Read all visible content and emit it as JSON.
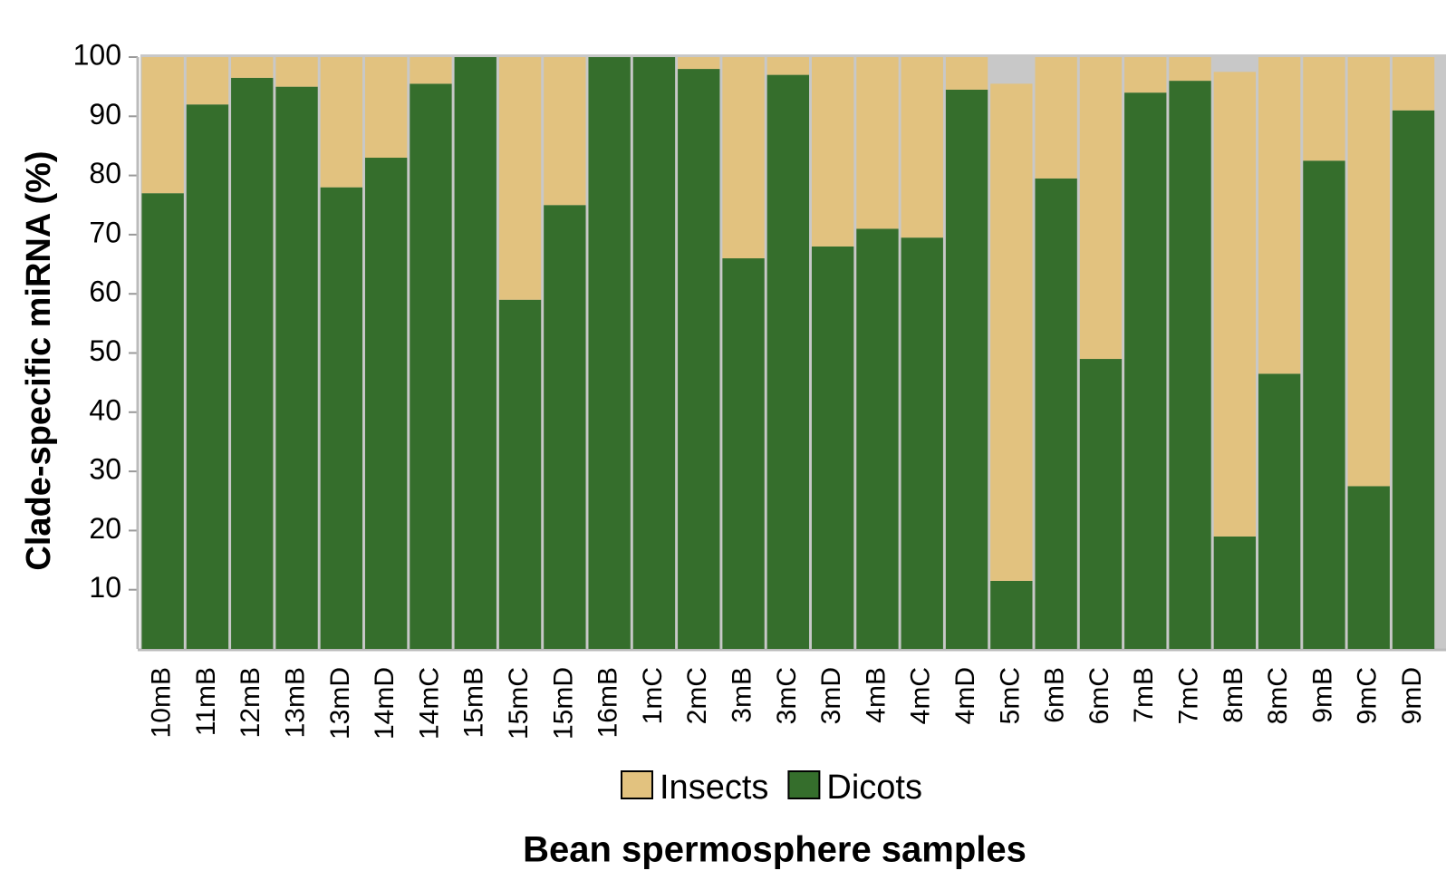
{
  "chart_data": {
    "type": "stacked_bar",
    "y_label": "Clade-specific miRNA (%)",
    "x_label": "Bean spermosphere samples",
    "categories": [
      "10mB",
      "11mB",
      "12mB",
      "13mB",
      "13mD",
      "14mD",
      "14mC",
      "15mB",
      "15mC",
      "15mD",
      "16mB",
      "1mC",
      "2mC",
      "3mB",
      "3mC",
      "3mD",
      "4mB",
      "4mC",
      "4mD",
      "5mC",
      "6mB",
      "6mC",
      "7mB",
      "7mC",
      "8mB",
      "8mC",
      "9mB",
      "9mC",
      "9mD"
    ],
    "series": [
      {
        "name": "Dicots",
        "color": "#356e2c",
        "values": [
          77,
          92,
          96.5,
          95,
          78,
          83,
          95.5,
          100,
          59,
          75,
          100,
          100,
          98,
          66,
          97,
          68,
          71,
          69.5,
          94.5,
          11.5,
          79.5,
          49,
          94,
          96,
          19,
          46.5,
          82.5,
          27.5,
          91
        ]
      },
      {
        "name": "Insects",
        "color": "#e2c27f",
        "values": [
          23,
          8,
          3.5,
          5,
          22,
          17,
          4.5,
          0,
          41,
          25,
          0,
          0,
          2,
          34,
          3,
          32,
          29,
          30.5,
          5.5,
          84,
          20.5,
          51,
          6,
          4,
          78.5,
          53.5,
          17.5,
          72.5,
          9
        ]
      }
    ],
    "legend_order": [
      "Insects",
      "Dicots"
    ],
    "ylim": [
      0,
      100
    ],
    "yticks": [
      10,
      20,
      30,
      40,
      50,
      60,
      70,
      80,
      90,
      100
    ]
  }
}
